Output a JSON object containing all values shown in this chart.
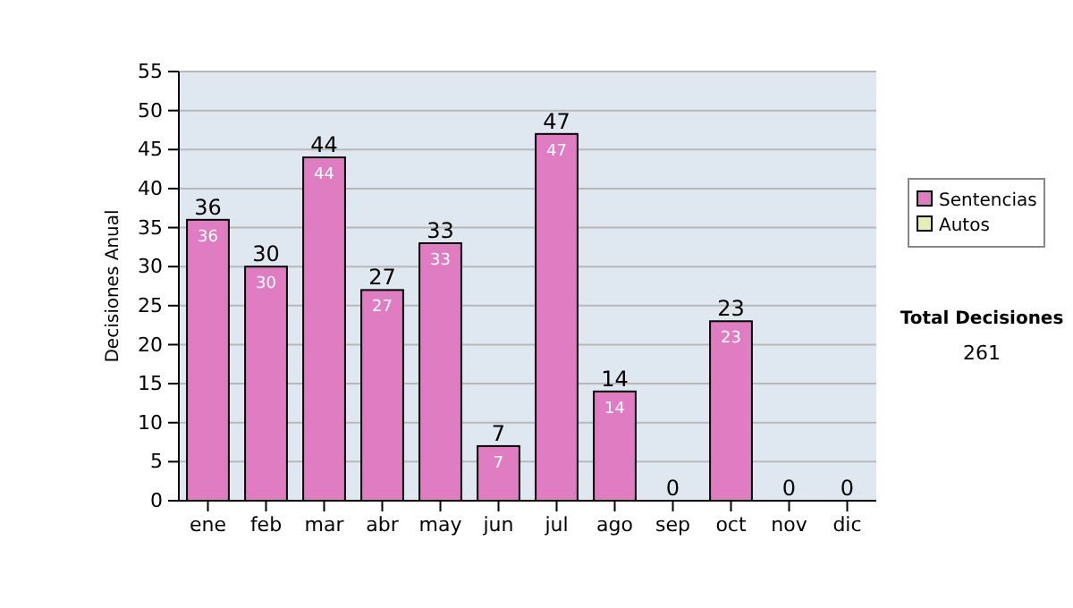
{
  "chart_data": {
    "type": "bar",
    "ylabel": "Decisiones Anual",
    "categories": [
      "ene",
      "feb",
      "mar",
      "abr",
      "may",
      "jun",
      "jul",
      "ago",
      "sep",
      "oct",
      "nov",
      "dic"
    ],
    "series": [
      {
        "name": "Sentencias",
        "color": "#e07cc2",
        "values": [
          36,
          30,
          44,
          27,
          33,
          7,
          47,
          14,
          0,
          23,
          0,
          0
        ],
        "value_labels": [
          "36",
          "30",
          "44",
          "27",
          "33",
          "7",
          "47",
          "14",
          null,
          "23",
          null,
          null
        ]
      },
      {
        "name": "Autos",
        "color": "#e6f0b4",
        "values": [
          0,
          0,
          0,
          0,
          0,
          0,
          0,
          0,
          0,
          0,
          0,
          0
        ]
      }
    ],
    "stacked": true,
    "totals": [
      "36",
      "30",
      "44",
      "27",
      "33",
      "7",
      "47",
      "14",
      "0",
      "23",
      "0",
      "0"
    ],
    "ylim": [
      0,
      55
    ],
    "yticks": [
      0,
      5,
      10,
      15,
      20,
      25,
      30,
      35,
      40,
      45,
      50,
      55
    ],
    "grid": "y",
    "legend": "right",
    "annotations": [
      "Total Decisiones",
      "261"
    ]
  }
}
